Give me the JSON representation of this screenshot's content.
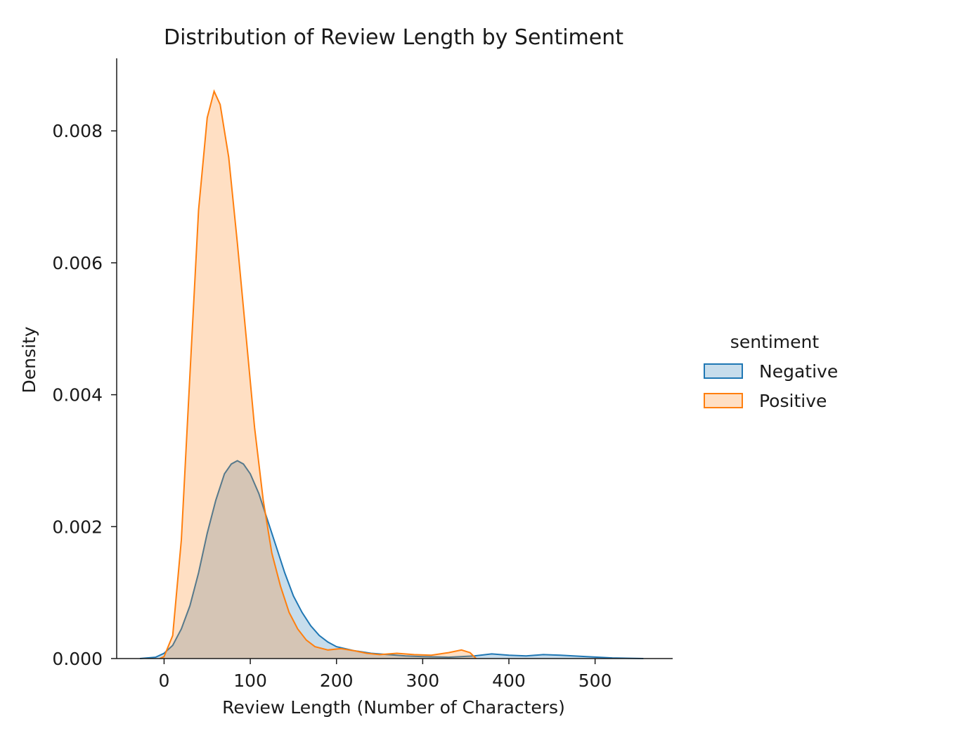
{
  "chart_data": {
    "type": "area",
    "title": "Distribution of Review Length by Sentiment",
    "xlabel": "Review Length (Number of Characters)",
    "ylabel": "Density",
    "xlim": [
      -55,
      590
    ],
    "ylim": [
      0,
      0.0091
    ],
    "x_ticks": [
      0,
      100,
      200,
      300,
      400,
      500
    ],
    "x_tick_labels": [
      "0",
      "100",
      "200",
      "300",
      "400",
      "500"
    ],
    "y_ticks": [
      0,
      0.002,
      0.004,
      0.006,
      0.008
    ],
    "y_tick_labels": [
      "0.000",
      "0.002",
      "0.004",
      "0.006",
      "0.008"
    ],
    "grid": false,
    "legend": {
      "title": "sentiment",
      "placement": "right-outside"
    },
    "series": [
      {
        "name": "Negative",
        "color": "#1f77b4",
        "fill_opacity": 0.25,
        "points": [
          [
            -28,
            0.0
          ],
          [
            -10,
            2e-05
          ],
          [
            0,
            8e-05
          ],
          [
            10,
            0.0002
          ],
          [
            20,
            0.00045
          ],
          [
            30,
            0.0008
          ],
          [
            40,
            0.0013
          ],
          [
            50,
            0.0019
          ],
          [
            60,
            0.0024
          ],
          [
            70,
            0.0028
          ],
          [
            78,
            0.00295
          ],
          [
            85,
            0.003
          ],
          [
            92,
            0.00295
          ],
          [
            100,
            0.0028
          ],
          [
            110,
            0.0025
          ],
          [
            120,
            0.0021
          ],
          [
            130,
            0.0017
          ],
          [
            140,
            0.0013
          ],
          [
            150,
            0.00095
          ],
          [
            160,
            0.0007
          ],
          [
            170,
            0.0005
          ],
          [
            180,
            0.00035
          ],
          [
            190,
            0.00025
          ],
          [
            200,
            0.00018
          ],
          [
            220,
            0.00012
          ],
          [
            240,
            8e-05
          ],
          [
            260,
            6e-05
          ],
          [
            280,
            4e-05
          ],
          [
            300,
            3e-05
          ],
          [
            330,
            2e-05
          ],
          [
            360,
            4e-05
          ],
          [
            380,
            7e-05
          ],
          [
            400,
            5e-05
          ],
          [
            420,
            4e-05
          ],
          [
            440,
            6e-05
          ],
          [
            460,
            5e-05
          ],
          [
            490,
            3e-05
          ],
          [
            520,
            1e-05
          ],
          [
            556,
            0.0
          ]
        ]
      },
      {
        "name": "Positive",
        "color": "#ff7f0e",
        "fill_opacity": 0.25,
        "points": [
          [
            -5,
            0.0
          ],
          [
            0,
            3e-05
          ],
          [
            10,
            0.00035
          ],
          [
            20,
            0.0018
          ],
          [
            30,
            0.0043
          ],
          [
            40,
            0.0068
          ],
          [
            50,
            0.0082
          ],
          [
            58,
            0.0086
          ],
          [
            65,
            0.0084
          ],
          [
            75,
            0.0076
          ],
          [
            85,
            0.0063
          ],
          [
            95,
            0.0049
          ],
          [
            105,
            0.0035
          ],
          [
            115,
            0.0024
          ],
          [
            125,
            0.0016
          ],
          [
            135,
            0.0011
          ],
          [
            145,
            0.0007
          ],
          [
            155,
            0.00045
          ],
          [
            165,
            0.00028
          ],
          [
            175,
            0.00018
          ],
          [
            190,
            0.00013
          ],
          [
            205,
            0.00015
          ],
          [
            220,
            0.00012
          ],
          [
            235,
            8e-05
          ],
          [
            250,
            6e-05
          ],
          [
            270,
            8e-05
          ],
          [
            290,
            6e-05
          ],
          [
            310,
            5e-05
          ],
          [
            330,
            9e-05
          ],
          [
            345,
            0.00013
          ],
          [
            355,
            9e-05
          ],
          [
            362,
            0.0
          ]
        ]
      }
    ]
  }
}
